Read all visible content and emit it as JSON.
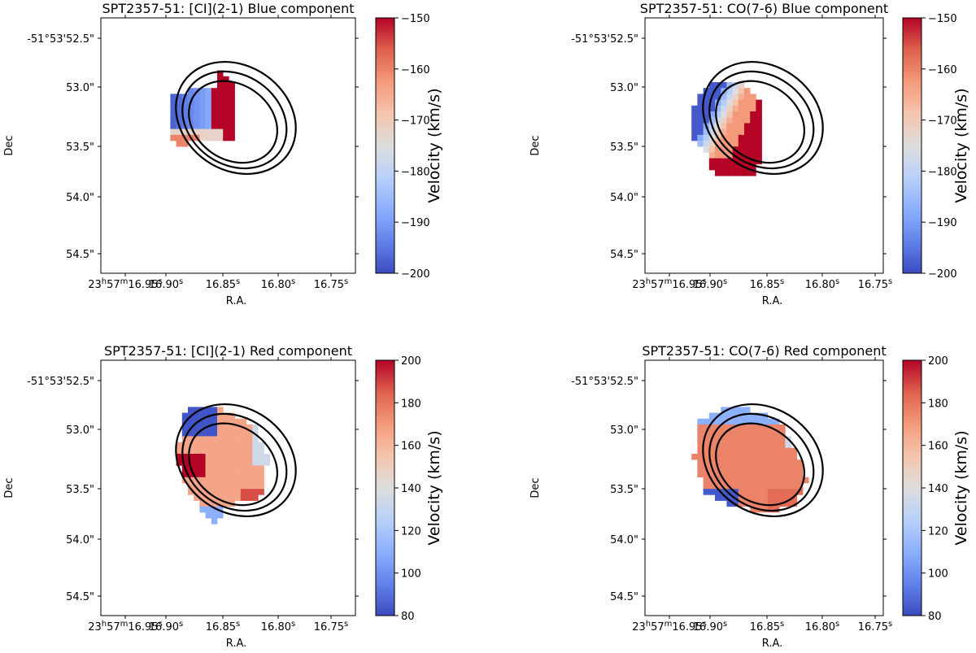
{
  "chart_data": [
    {
      "type": "heatmap",
      "title": "SPT2357-51: [CI](2-1) Blue component",
      "xlabel": "R.A.",
      "ylabel": "Dec",
      "x_ticks": [
        "23h57m16.95s",
        "16.90s",
        "16.85s",
        "16.80s",
        "16.75s"
      ],
      "y_ticks": [
        "-51°53'52.5\"",
        "53.0\"",
        "53.5\"",
        "54.0\"",
        "54.5\""
      ],
      "colorbar": {
        "label": "Velocity (km/s)",
        "min": -200,
        "max": -150,
        "ticks": [
          -150,
          -160,
          -170,
          -180,
          -190,
          -200
        ],
        "colormap": "coolwarm"
      },
      "contour_levels": 3
    },
    {
      "type": "heatmap",
      "title": "SPT2357-51: CO(7-6) Blue component",
      "xlabel": "R.A.",
      "ylabel": "Dec",
      "x_ticks": [
        "23h57m16.95s",
        "16.90s",
        "16.85s",
        "16.80s",
        "16.75s"
      ],
      "y_ticks": [
        "-51°53'52.5\"",
        "53.0\"",
        "53.5\"",
        "54.0\"",
        "54.5\""
      ],
      "colorbar": {
        "label": "Velocity (km/s)",
        "min": -200,
        "max": -150,
        "ticks": [
          -150,
          -160,
          -170,
          -180,
          -190,
          -200
        ],
        "colormap": "coolwarm"
      },
      "contour_levels": 3
    },
    {
      "type": "heatmap",
      "title": "SPT2357-51: [CI](2-1) Red component",
      "xlabel": "R.A.",
      "ylabel": "Dec",
      "x_ticks": [
        "23h57m16.95s",
        "16.90s",
        "16.85s",
        "16.80s",
        "16.75s"
      ],
      "y_ticks": [
        "-51°53'52.5\"",
        "53.0\"",
        "53.5\"",
        "54.0\"",
        "54.5\""
      ],
      "colorbar": {
        "label": "Velocity (km/s)",
        "min": 80,
        "max": 200,
        "ticks": [
          200,
          180,
          160,
          140,
          120,
          100,
          80
        ],
        "colormap": "coolwarm"
      },
      "contour_levels": 3
    },
    {
      "type": "heatmap",
      "title": "SPT2357-51: CO(7-6) Red component",
      "xlabel": "R.A.",
      "ylabel": "Dec",
      "x_ticks": [
        "23h57m16.95s",
        "16.90s",
        "16.85s",
        "16.80s",
        "16.75s"
      ],
      "y_ticks": [
        "-51°53'52.5\"",
        "53.0\"",
        "53.5\"",
        "54.0\"",
        "54.5\""
      ],
      "colorbar": {
        "label": "Velocity (km/s)",
        "min": 80,
        "max": 200,
        "ticks": [
          200,
          180,
          160,
          140,
          120,
          100,
          80
        ],
        "colormap": "coolwarm"
      },
      "contour_levels": 3
    }
  ]
}
